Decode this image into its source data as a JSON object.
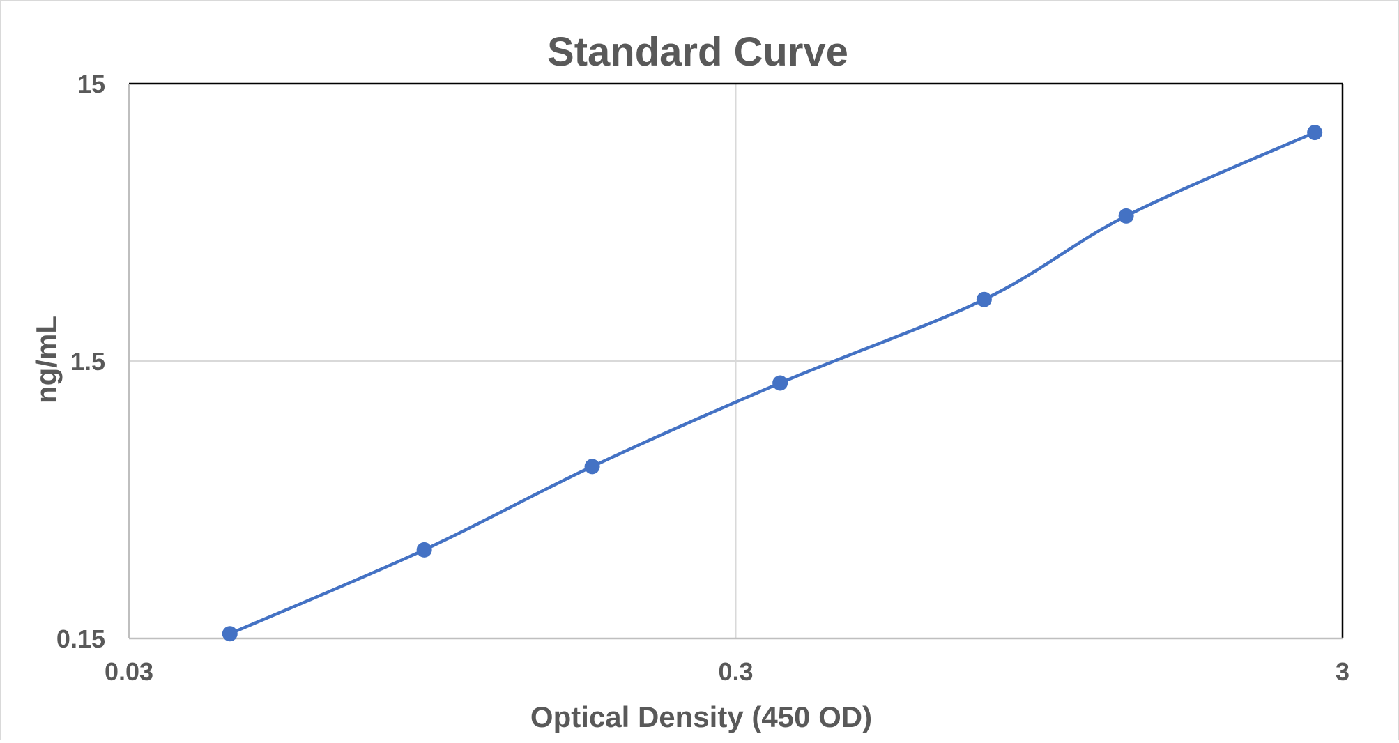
{
  "chart_data": {
    "type": "line",
    "title": "Standard Curve",
    "xlabel": "Optical Density (450 OD)",
    "ylabel": "ng/mL",
    "x_scale": "log",
    "y_scale": "log",
    "xlim": [
      0.03,
      3
    ],
    "ylim": [
      0.15,
      15
    ],
    "x_ticks": [
      {
        "value": 0.03,
        "label": "0.03"
      },
      {
        "value": 0.3,
        "label": "0.3"
      },
      {
        "value": 3,
        "label": "3"
      }
    ],
    "y_ticks": [
      {
        "value": 0.15,
        "label": "0.15"
      },
      {
        "value": 1.5,
        "label": "1.5"
      },
      {
        "value": 15,
        "label": "15"
      }
    ],
    "grid": true,
    "smoothed": true,
    "markers": true,
    "series": [
      {
        "color": "#4472C4",
        "points": [
          {
            "x": 0.044,
            "y": 0.156
          },
          {
            "x": 0.092,
            "y": 0.313
          },
          {
            "x": 0.174,
            "y": 0.625
          },
          {
            "x": 0.355,
            "y": 1.25
          },
          {
            "x": 0.77,
            "y": 2.5
          },
          {
            "x": 1.32,
            "y": 5.0
          },
          {
            "x": 2.7,
            "y": 10.0
          }
        ]
      }
    ],
    "colors": {
      "series": "#4472C4",
      "grid": "#d9d9d9",
      "text": "#595959",
      "plot_border": "#000000"
    }
  }
}
